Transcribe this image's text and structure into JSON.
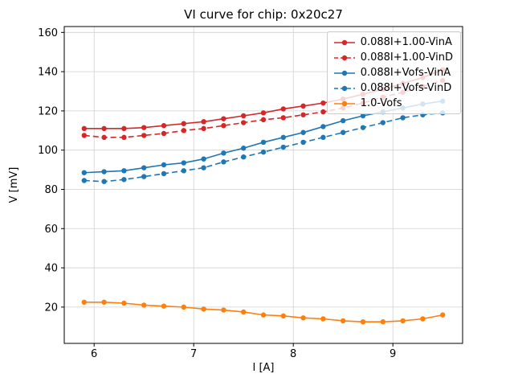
{
  "chart_data": {
    "type": "line",
    "title": "VI curve for chip: 0x20c27",
    "xlabel": "I [A]",
    "ylabel": "V [mV]",
    "xlim": [
      5.7,
      9.7
    ],
    "ylim": [
      1.5,
      163
    ],
    "xticks": [
      6,
      7,
      8,
      9
    ],
    "yticks": [
      20,
      40,
      60,
      80,
      100,
      120,
      140,
      160
    ],
    "grid": true,
    "legend_position": "upper right",
    "x": [
      5.9,
      6.1,
      6.3,
      6.5,
      6.7,
      6.9,
      7.1,
      7.3,
      7.5,
      7.7,
      7.9,
      8.1,
      8.3,
      8.5,
      8.7,
      8.9,
      9.1,
      9.3,
      9.5
    ],
    "series": [
      {
        "name": "0.088I+1.00-VinA",
        "color": "#d62728",
        "dash": "solid",
        "marker": "circle",
        "values": [
          111,
          111,
          111,
          111.5,
          112.5,
          113.5,
          114.5,
          116,
          117.5,
          119,
          121,
          122.5,
          124,
          126,
          128.5,
          131,
          134,
          137,
          141
        ]
      },
      {
        "name": "0.088I+1.00-VinD",
        "color": "#d62728",
        "dash": "dashed",
        "marker": "circle",
        "values": [
          107.5,
          106.5,
          106.5,
          107.5,
          108.5,
          110,
          111,
          112.5,
          114,
          115.5,
          116.5,
          118,
          119.5,
          121.5,
          124,
          127,
          129.5,
          132.5,
          135.5
        ]
      },
      {
        "name": "0.088I+Vofs-VinA",
        "color": "#1f77b4",
        "dash": "solid",
        "marker": "circle",
        "values": [
          88.5,
          89,
          89.5,
          91,
          92.5,
          93.5,
          95.5,
          98.5,
          101,
          104,
          106.5,
          109,
          112,
          115,
          117.5,
          119.5,
          121.5,
          123.5,
          125
        ]
      },
      {
        "name": "0.088I+Vofs-VinD",
        "color": "#1f77b4",
        "dash": "dashed",
        "marker": "circle",
        "values": [
          84.5,
          84,
          85,
          86.5,
          88,
          89.5,
          91,
          94,
          96.5,
          99,
          101.5,
          104,
          106.5,
          109,
          111.5,
          114,
          116.5,
          118,
          119
        ]
      },
      {
        "name": "1.0-Vofs",
        "color": "#ff7f0e",
        "dash": "solid",
        "marker": "circle",
        "values": [
          22.5,
          22.5,
          22,
          21,
          20.5,
          20,
          19,
          18.5,
          17.5,
          16,
          15.5,
          14.5,
          14,
          13,
          12.5,
          12.5,
          13,
          14,
          16
        ]
      }
    ]
  }
}
